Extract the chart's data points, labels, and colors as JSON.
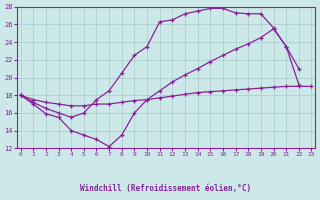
{
  "xlabel": "Windchill (Refroidissement éolien,°C)",
  "bg_color": "#cde8e8",
  "line_color": "#882299",
  "grid_color": "#aacccc",
  "xlim": [
    -0.3,
    23.3
  ],
  "ylim": [
    12,
    28
  ],
  "xticks": [
    0,
    1,
    2,
    3,
    4,
    5,
    6,
    7,
    8,
    9,
    10,
    11,
    12,
    13,
    14,
    15,
    16,
    17,
    18,
    19,
    20,
    21,
    22,
    23
  ],
  "yticks": [
    12,
    14,
    16,
    18,
    20,
    22,
    24,
    26,
    28
  ],
  "series": [
    {
      "x": [
        0,
        1,
        2,
        3,
        4,
        5,
        6,
        7,
        8,
        9,
        10,
        11,
        12,
        13,
        14,
        15,
        16,
        17,
        18,
        19,
        20,
        21,
        22,
        23
      ],
      "y": [
        18,
        17.5,
        17.2,
        17.0,
        16.8,
        16.8,
        17.0,
        17.0,
        17.2,
        17.4,
        17.5,
        17.7,
        17.9,
        18.1,
        18.3,
        18.4,
        18.5,
        18.6,
        18.7,
        18.8,
        18.9,
        19.0,
        19.0,
        19.0
      ]
    },
    {
      "x": [
        0,
        1,
        2,
        3,
        4,
        5,
        6,
        7,
        8,
        9,
        10,
        11,
        12,
        13,
        14,
        15,
        16,
        17,
        18,
        19,
        20,
        21,
        22,
        23
      ],
      "y": [
        18,
        17.0,
        15.9,
        15.5,
        14.0,
        13.5,
        13.0,
        12.2,
        13.5,
        16.0,
        17.5,
        18.5,
        19.5,
        20.3,
        21.0,
        21.8,
        22.5,
        23.2,
        23.8,
        24.5,
        25.5,
        23.5,
        21.0,
        null
      ]
    },
    {
      "x": [
        0,
        1,
        2,
        3,
        4,
        5,
        6,
        7,
        8,
        9,
        10,
        11,
        12,
        13,
        14,
        15,
        16,
        17,
        18,
        19,
        20,
        21,
        22
      ],
      "y": [
        18,
        17.2,
        16.5,
        16.0,
        15.5,
        16.0,
        17.5,
        18.5,
        20.5,
        22.5,
        23.5,
        26.3,
        26.5,
        27.2,
        27.5,
        27.8,
        27.8,
        27.3,
        27.2,
        27.2,
        25.6,
        23.5,
        19.2
      ]
    }
  ]
}
